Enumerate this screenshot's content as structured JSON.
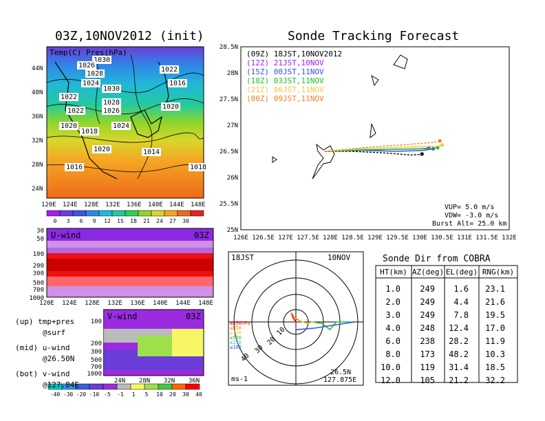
{
  "titles": {
    "left": "03Z,10NOV2012 (init)",
    "right": "Sonde Tracking Forecast"
  },
  "colors": {
    "temp_scale": [
      "#a020f0",
      "#6a3dd8",
      "#3f55e0",
      "#2f86e8",
      "#21b8d6",
      "#22c9a0",
      "#33cc55",
      "#8fd62a",
      "#d9d62b",
      "#f5a623",
      "#ee6a1a",
      "#e2261f"
    ],
    "uwind_scale": [
      "#8a2be2",
      "#b266e0",
      "#d28fe8",
      "#ff3333",
      "#ee1111",
      "#cc0000"
    ],
    "vwind_scale": [
      "#00c8c8",
      "#2b9cf0",
      "#3a5fe0",
      "#6a3dd8",
      "#9b2be0",
      "#bbbbbb",
      "#f7f766",
      "#9ee04a",
      "#3ecb3e",
      "#ff6600",
      "#ff0000"
    ],
    "track": {
      "09Z": "#000000",
      "12Z": "#a020f0",
      "15Z": "#3050f8",
      "18Z": "#22c122",
      "21Z": "#f0c840",
      "00Z": "#f08020"
    }
  },
  "map_panel": {
    "label": "Temp(C) Pres(hPa)",
    "lat_ticks": [
      "44N",
      "40N",
      "36N",
      "32N",
      "28N",
      "24N"
    ],
    "lon_ticks": [
      "120E",
      "124E",
      "128E",
      "132E",
      "136E",
      "140E",
      "144E",
      "148E"
    ],
    "isobars": [
      "1030",
      "1026",
      "1028",
      "1024",
      "1022",
      "1022",
      "1020",
      "1028",
      "1030",
      "1026",
      "1020",
      "1018",
      "1024",
      "1022",
      "1016",
      "1020",
      "1014",
      "1016",
      "1018"
    ],
    "colorbar_ticks": [
      "0",
      "3",
      "6",
      "9",
      "12",
      "15",
      "18",
      "21",
      "24",
      "27",
      "30"
    ]
  },
  "uwind_panel": {
    "label": "U-wind",
    "time": "03Z",
    "p_ticks": [
      "30",
      "50",
      "100",
      "200",
      "300",
      "500",
      "700",
      "1000"
    ],
    "lon_ticks": [
      "120E",
      "124E",
      "128E",
      "132E",
      "136E",
      "140E",
      "144E",
      "148E"
    ]
  },
  "vwind_panel": {
    "label": "V-wind",
    "time": "03Z",
    "p_ticks": [
      "100",
      "200",
      "300",
      "500",
      "700",
      "1000"
    ],
    "lat_ticks": [
      "24N",
      "28N",
      "32N",
      "36N"
    ],
    "colorbar_ticks": [
      "-40",
      "-30",
      "-20",
      "-10",
      "-5",
      "-1",
      "1",
      "5",
      "10",
      "20",
      "30",
      "40"
    ]
  },
  "notes": {
    "line1": "(up) tmp+pres",
    "line2": "@surf",
    "line3": "(mid) u-wind",
    "line4": "@26.50N",
    "line5": "(bot) v-wind",
    "line6": "@127.84E"
  },
  "track_panel": {
    "legend": [
      {
        "key": "09Z",
        "text": "(09Z) 18JST,10NOV2012"
      },
      {
        "key": "12Z",
        "text": "(12Z) 21JST,10NOV"
      },
      {
        "key": "15Z",
        "text": "(15Z) 00JST,11NOV"
      },
      {
        "key": "18Z",
        "text": "(18Z) 03JST,11NOV"
      },
      {
        "key": "21Z",
        "text": "(21Z) 06JST,11NOV"
      },
      {
        "key": "00Z",
        "text": "(00Z) 09JST,11NOV"
      }
    ],
    "lat_ticks": [
      "28.5N",
      "28N",
      "27.5N",
      "27N",
      "26.5N",
      "26N",
      "25.5N",
      "25N"
    ],
    "lon_ticks": [
      "126E",
      "126.5E",
      "127E",
      "127.5E",
      "128E",
      "128.5E",
      "129E",
      "129.5E",
      "130E",
      "130.5E",
      "131E",
      "131.5E",
      "132E"
    ],
    "params": {
      "vup": "VUP= 5.0 m/s",
      "vdw": "VDW= -3.0 m/s",
      "burst": "Burst Alt= 25.0 km"
    }
  },
  "chart_data": [
    {
      "type": "line",
      "title": "Sonde Tracking Forecast",
      "xlim": [
        126,
        132
      ],
      "ylim": [
        25,
        28.5
      ],
      "xlabel": "",
      "ylabel": "",
      "grid": false,
      "legend_placement": "top-left",
      "launch": [
        127.875,
        26.5
      ],
      "series": [
        {
          "name": "(09Z) 18JST,10NOV2012",
          "x": [
            127.875,
            128.5,
            129.2,
            129.8,
            130.0,
            130.05
          ],
          "y": [
            26.5,
            26.5,
            26.47,
            26.43,
            26.44,
            26.45
          ]
        },
        {
          "name": "(12Z) 21JST,10NOV",
          "x": [
            127.875,
            128.6,
            129.4,
            130.0,
            130.2
          ],
          "y": [
            26.5,
            26.52,
            26.54,
            26.55,
            26.56
          ]
        },
        {
          "name": "(15Z) 00JST,11NOV",
          "x": [
            127.875,
            128.7,
            129.5,
            130.1,
            130.3
          ],
          "y": [
            26.5,
            26.52,
            26.5,
            26.52,
            26.55
          ]
        },
        {
          "name": "(18Z) 03JST,11NOV",
          "x": [
            127.875,
            128.8,
            129.6,
            130.2,
            130.4
          ],
          "y": [
            26.5,
            26.53,
            26.54,
            26.55,
            26.57
          ]
        },
        {
          "name": "(21Z) 06JST,11NOV",
          "x": [
            127.875,
            128.7,
            129.6,
            130.4,
            130.5
          ],
          "y": [
            26.5,
            26.55,
            26.58,
            26.6,
            26.62
          ]
        },
        {
          "name": "(00Z) 09JST,11NOV",
          "x": [
            127.875,
            128.9,
            129.7,
            130.3,
            130.45
          ],
          "y": [
            26.5,
            26.58,
            26.63,
            26.67,
            26.7
          ]
        }
      ]
    },
    {
      "type": "table",
      "title": "Sonde Dir from COBRA",
      "columns": [
        "HT(km)",
        "AZ(deg)",
        "EL(deg)",
        "RNG(km)"
      ],
      "rows": [
        [
          "1.0",
          "249",
          "1.6",
          "23.1"
        ],
        [
          "2.0",
          "249",
          "4.4",
          "21.6"
        ],
        [
          "3.0",
          "249",
          "7.8",
          "19.5"
        ],
        [
          "4.0",
          "248",
          "12.4",
          "17.0"
        ],
        [
          "6.0",
          "238",
          "28.2",
          "11.9"
        ],
        [
          "8.0",
          "173",
          "48.2",
          "10.3"
        ],
        [
          "10.0",
          "119",
          "31.4",
          "18.5"
        ],
        [
          "12.0",
          "105",
          "21.2",
          "32.2"
        ]
      ]
    },
    {
      "type": "line",
      "title": "",
      "time": "18JST",
      "date": "10NOV",
      "unit": "ms-1",
      "location_lat": "26.5N",
      "location_lon": "127.875E",
      "ring_labels": [
        "10",
        "20",
        "30",
        "40"
      ],
      "level_legend": [
        "≥850hPa",
        "≤850",
        "≤700",
        "≤500",
        "≤250",
        "≤100"
      ],
      "series": [
        {
          "name": "≥850hPa",
          "u": [
            0,
            -2,
            -3
          ],
          "v": [
            0,
            3,
            6
          ]
        },
        {
          "name": "≤850",
          "u": [
            -3,
            -1,
            2
          ],
          "v": [
            6,
            3,
            1
          ]
        },
        {
          "name": "≤700",
          "u": [
            2,
            7,
            11
          ],
          "v": [
            1,
            -1,
            0
          ]
        },
        {
          "name": "≤500",
          "u": [
            11,
            17,
            22,
            26,
            30,
            34
          ],
          "v": [
            0,
            -1,
            -5,
            0,
            0,
            0
          ]
        },
        {
          "name": "≤250",
          "u": [
            34,
            38
          ],
          "v": [
            0,
            0
          ]
        },
        {
          "name": "≤100",
          "u": [
            38,
            25,
            12,
            0
          ],
          "v": [
            0,
            -2,
            -4,
            -5
          ]
        }
      ]
    }
  ]
}
